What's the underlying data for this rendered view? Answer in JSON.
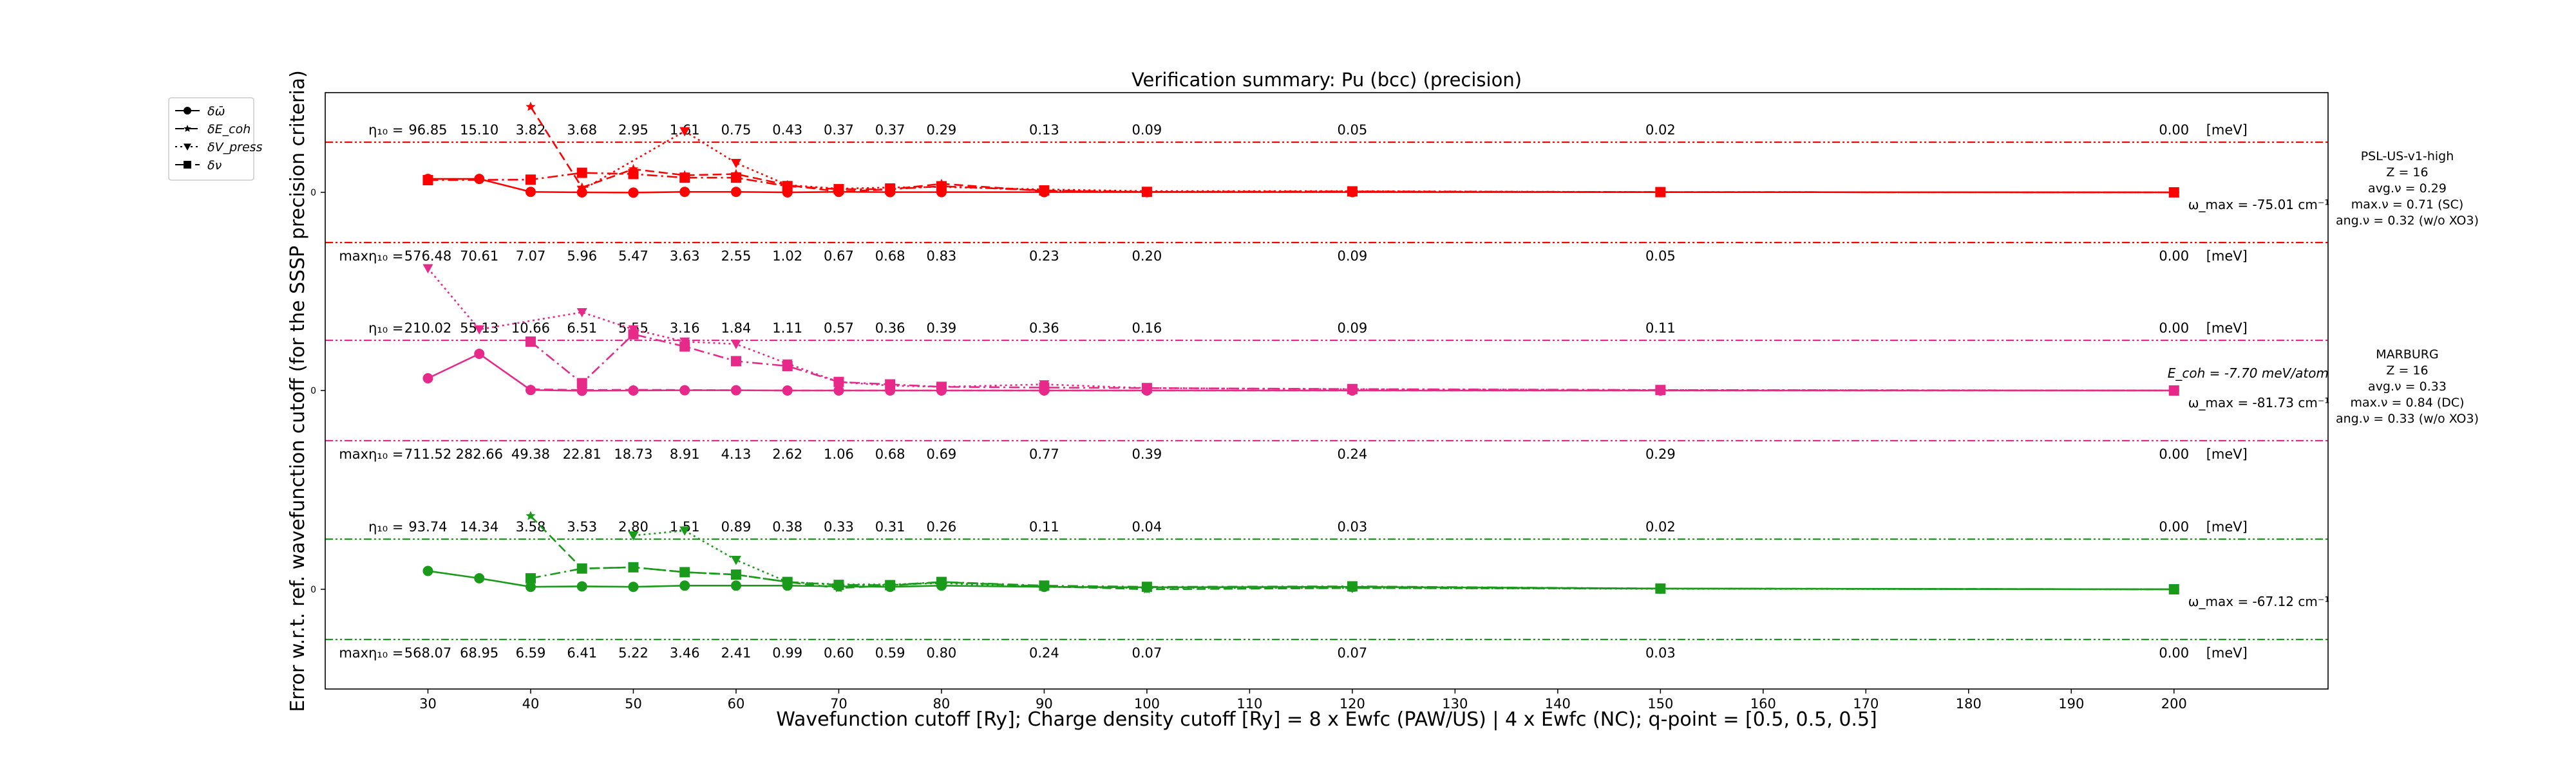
{
  "chart_data": {
    "type": "line",
    "title": "Verification summary: Pu (bcc) (precision)",
    "xlabel": "Wavefunction cutoff [Ry]; Charge density cutoff [Ry] = 8 x Ewfc (PAW/US) | 4 x Ewfc (NC); q-point = [0.5, 0.5, 0.5]",
    "ylabel": "Error w.r.t. ref. wavefunction cutoff (for the SSSP precision criteria)",
    "xlim": [
      20,
      215
    ],
    "xticks": [
      30,
      40,
      50,
      60,
      70,
      80,
      90,
      100,
      110,
      120,
      130,
      140,
      150,
      160,
      170,
      180,
      190,
      200
    ],
    "grid": false,
    "legend_position": "upper-left (outside axes)",
    "legend": [
      {
        "label": "δω̄",
        "linestyle": "solid",
        "marker": "circle"
      },
      {
        "label": "δE_coh",
        "linestyle": "dashed",
        "marker": "star"
      },
      {
        "label": "δV_press",
        "linestyle": "dotted",
        "marker": "triangle-down"
      },
      {
        "label": "δν",
        "linestyle": "dashdot",
        "marker": "square"
      }
    ],
    "eta_unit_label": "[meV]",
    "eta_row_prefix": "η₁₀ =",
    "max_eta_row_prefix": "maxη₁₀ =",
    "zero_tick_label": "0",
    "panels": [
      {
        "name": "PSL-US-v1-high",
        "color": "#ff0000",
        "info": [
          "PSL-US-v1-high",
          "Z = 16",
          "avg.ν = 0.29",
          "max.ν = 0.71 (SC)",
          "ang.ν = 0.32 (w/o XO3)"
        ],
        "omega_max": "ω_max = -75.01 cm⁻¹",
        "e_coh": "",
        "eta_x": [
          30,
          35,
          40,
          45,
          50,
          55,
          60,
          65,
          70,
          75,
          80,
          90,
          100,
          120,
          150,
          200
        ],
        "eta_values": [
          "96.85",
          "15.10",
          "3.82",
          "3.68",
          "2.95",
          "1.61",
          "0.75",
          "0.43",
          "0.37",
          "0.37",
          "0.29",
          "0.13",
          "0.09",
          "0.05",
          "0.02",
          "0.00"
        ],
        "max_eta_values": [
          "576.48",
          "70.61",
          "7.07",
          "5.96",
          "5.47",
          "3.63",
          "2.55",
          "1.02",
          "0.67",
          "0.68",
          "0.83",
          "0.23",
          "0.20",
          "0.09",
          "0.05",
          "0.00"
        ],
        "series": [
          {
            "name": "δω̄",
            "linestyle": "solid",
            "marker": "circle",
            "x": [
              30,
              35,
              40,
              45,
              50,
              55,
              60,
              65,
              70,
              75,
              80,
              90,
              100,
              120,
              150,
              200
            ],
            "y": [
              0.55,
              0.55,
              0.02,
              0.0,
              -0.01,
              0.02,
              0.02,
              0.0,
              0.02,
              0.01,
              0.01,
              0.01,
              0.01,
              0.01,
              0.01,
              0.0
            ]
          },
          {
            "name": "δE_coh",
            "linestyle": "dashed",
            "marker": "star",
            "x": [
              40,
              45,
              50,
              55,
              60,
              65,
              70,
              75,
              80,
              90,
              100,
              120,
              150,
              200
            ],
            "y": [
              3.5,
              0.2,
              0.95,
              0.7,
              0.75,
              0.3,
              0.03,
              0.12,
              0.35,
              0.05,
              0.02,
              0.03,
              0.01,
              0.0
            ]
          },
          {
            "name": "δV_press",
            "linestyle": "dotted",
            "marker": "triangle-down",
            "x": [
              45,
              55,
              60,
              65,
              70,
              75,
              80,
              90,
              100,
              120,
              150,
              200
            ],
            "y": [
              0.1,
              2.5,
              1.2,
              0.3,
              0.15,
              0.2,
              0.22,
              0.12,
              0.05,
              0.05,
              0.01,
              0.0
            ]
          },
          {
            "name": "δν",
            "linestyle": "dashdot",
            "marker": "square",
            "x": [
              30,
              40,
              45,
              50,
              55,
              60,
              65,
              70,
              75,
              80,
              90,
              100,
              120,
              150,
              200
            ],
            "y": [
              0.5,
              0.52,
              0.8,
              0.75,
              0.6,
              0.6,
              0.25,
              0.13,
              0.13,
              0.25,
              0.08,
              0.02,
              0.04,
              0.01,
              0.0
            ]
          }
        ]
      },
      {
        "name": "MARBURG",
        "color": "#e7298a",
        "info": [
          "MARBURG",
          "Z = 16",
          "avg.ν = 0.33",
          "max.ν = 0.84 (DC)",
          "ang.ν = 0.33 (w/o XO3)"
        ],
        "omega_max": "ω_max = -81.73 cm⁻¹",
        "e_coh": "E_coh = -7.70 meV/atom",
        "eta_x": [
          30,
          35,
          40,
          45,
          50,
          55,
          60,
          65,
          70,
          75,
          80,
          90,
          100,
          120,
          150,
          200
        ],
        "eta_values": [
          "210.02",
          "55.13",
          "10.66",
          "6.51",
          "5.55",
          "3.16",
          "1.84",
          "1.11",
          "0.57",
          "0.36",
          "0.39",
          "0.36",
          "0.16",
          "0.09",
          "0.11",
          "0.00"
        ],
        "max_eta_values": [
          "711.52",
          "282.66",
          "49.38",
          "22.81",
          "18.73",
          "8.91",
          "4.13",
          "2.62",
          "1.06",
          "0.68",
          "0.69",
          "0.77",
          "0.39",
          "0.24",
          "0.29",
          "0.00"
        ],
        "series": [
          {
            "name": "δω̄",
            "linestyle": "solid",
            "marker": "circle",
            "x": [
              30,
              35,
              40,
              45,
              50,
              55,
              60,
              65,
              70,
              75,
              80,
              90,
              100,
              120,
              150,
              200
            ],
            "y": [
              0.5,
              1.5,
              0.02,
              -0.01,
              0.0,
              0.01,
              0.01,
              0.0,
              0.0,
              0.0,
              0.0,
              0.0,
              0.0,
              0.0,
              0.0,
              0.0
            ]
          },
          {
            "name": "δE_coh",
            "linestyle": "dashed",
            "marker": "star",
            "x": [
              40,
              45,
              50,
              55,
              60,
              65,
              70,
              75,
              80,
              90,
              100,
              120,
              150,
              200
            ],
            "y": [
              0.05,
              0.02,
              0.03,
              0.02,
              0.01,
              0.0,
              0.0,
              0.0,
              0.0,
              0.0,
              0.0,
              0.0,
              0.0,
              0.0
            ]
          },
          {
            "name": "δV_press",
            "linestyle": "dotted",
            "marker": "triangle-down",
            "x": [
              30,
              35,
              45,
              50,
              55,
              60,
              65,
              70,
              75,
              80,
              90,
              100,
              120,
              150,
              200
            ],
            "y": [
              5.0,
              2.5,
              3.2,
              2.5,
              2.0,
              1.9,
              1.1,
              0.35,
              0.2,
              0.15,
              0.25,
              0.1,
              0.05,
              0.02,
              0.0
            ]
          },
          {
            "name": "δν",
            "linestyle": "dashdot",
            "marker": "square",
            "x": [
              40,
              45,
              50,
              55,
              60,
              65,
              70,
              75,
              80,
              90,
              100,
              120,
              150,
              200
            ],
            "y": [
              2.0,
              0.3,
              2.3,
              1.8,
              1.2,
              1.0,
              0.35,
              0.25,
              0.15,
              0.12,
              0.1,
              0.06,
              0.02,
              0.0
            ]
          }
        ]
      },
      {
        "name": "",
        "color": "#1a9a1a",
        "info": [],
        "omega_max": "ω_max = -67.12 cm⁻¹",
        "e_coh": "",
        "eta_x": [
          30,
          35,
          40,
          45,
          50,
          55,
          60,
          65,
          70,
          75,
          80,
          90,
          100,
          120,
          150,
          200
        ],
        "eta_values": [
          "93.74",
          "14.34",
          "3.58",
          "3.53",
          "2.80",
          "1.51",
          "0.89",
          "0.38",
          "0.33",
          "0.31",
          "0.26",
          "0.11",
          "0.04",
          "0.03",
          "0.02",
          "0.00"
        ],
        "max_eta_values": [
          "568.07",
          "68.95",
          "6.59",
          "6.41",
          "5.22",
          "3.46",
          "2.41",
          "0.99",
          "0.60",
          "0.59",
          "0.80",
          "0.24",
          "0.07",
          "0.07",
          "0.03",
          "0.00"
        ],
        "series": [
          {
            "name": "δω̄",
            "linestyle": "solid",
            "marker": "circle",
            "x": [
              30,
              35,
              40,
              45,
              50,
              55,
              60,
              65,
              70,
              75,
              80,
              90,
              100,
              120,
              150,
              200
            ],
            "y": [
              0.75,
              0.45,
              0.1,
              0.12,
              0.1,
              0.15,
              0.15,
              0.15,
              0.12,
              0.1,
              0.15,
              0.1,
              0.08,
              0.1,
              0.03,
              0.0
            ]
          },
          {
            "name": "δE_coh",
            "linestyle": "dashed",
            "marker": "star",
            "x": [
              40,
              45,
              50,
              55,
              60,
              65,
              70,
              75,
              80,
              90,
              100,
              120,
              150,
              200
            ],
            "y": [
              3.0,
              0.85,
              0.9,
              0.7,
              0.6,
              0.3,
              0.05,
              0.15,
              0.3,
              0.12,
              0.0,
              0.05,
              0.03,
              0.0
            ]
          },
          {
            "name": "δV_press",
            "linestyle": "dotted",
            "marker": "triangle-down",
            "x": [
              50,
              55,
              60,
              65,
              70,
              75,
              80,
              90,
              100,
              120,
              150,
              200
            ],
            "y": [
              2.2,
              2.4,
              1.2,
              0.3,
              0.2,
              0.2,
              0.25,
              0.1,
              0.05,
              0.05,
              0.02,
              0.0
            ]
          },
          {
            "name": "δν",
            "linestyle": "dashdot",
            "marker": "square",
            "x": [
              40,
              45,
              50,
              55,
              60,
              65,
              70,
              75,
              80,
              90,
              100,
              120,
              150,
              200
            ],
            "y": [
              0.45,
              0.85,
              0.9,
              0.7,
              0.6,
              0.3,
              0.18,
              0.17,
              0.3,
              0.15,
              0.1,
              0.12,
              0.03,
              0.0
            ]
          }
        ]
      }
    ]
  }
}
